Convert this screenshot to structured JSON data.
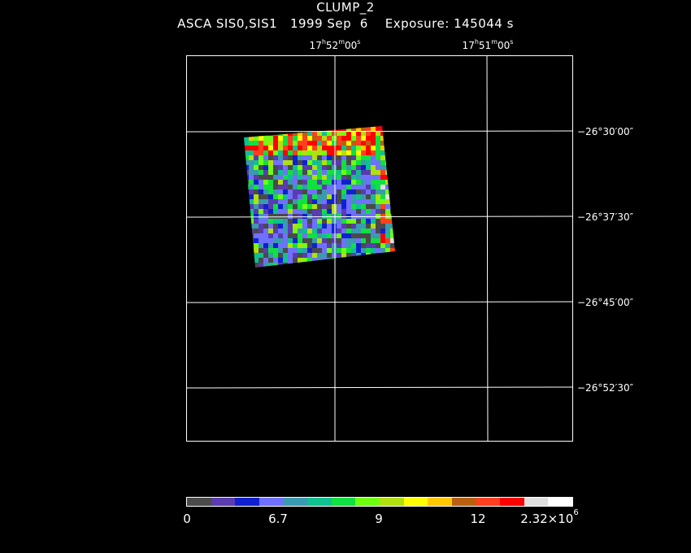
{
  "header": {
    "title": "CLUMP_2",
    "subtitle": "ASCA SIS0,SIS1   1999 Sep  6    Exposure: 145044 s"
  },
  "ra_ticks": [
    {
      "h": "17",
      "m": "52",
      "s": "00"
    },
    {
      "h": "17",
      "m": "51",
      "s": "00"
    }
  ],
  "dec_ticks": [
    "−26°30′00″",
    "−26°37′30″",
    "−26°45′00″",
    "−26°52′30″"
  ],
  "colorbar": {
    "colors": [
      "#4a4a4a",
      "#5a3cb0",
      "#1020d0",
      "#7070ff",
      "#3a9ab0",
      "#10c090",
      "#10e040",
      "#70ff10",
      "#b0e010",
      "#ffff00",
      "#ffc800",
      "#b86010",
      "#ff4020",
      "#ff0000",
      "#e0e0e0",
      "#ffffff"
    ],
    "labels": [
      {
        "text": "0"
      },
      {
        "text": "6.7"
      },
      {
        "text": "9"
      },
      {
        "text": "12"
      },
      {
        "text": "2.32×10",
        "sup": "6"
      }
    ]
  }
}
